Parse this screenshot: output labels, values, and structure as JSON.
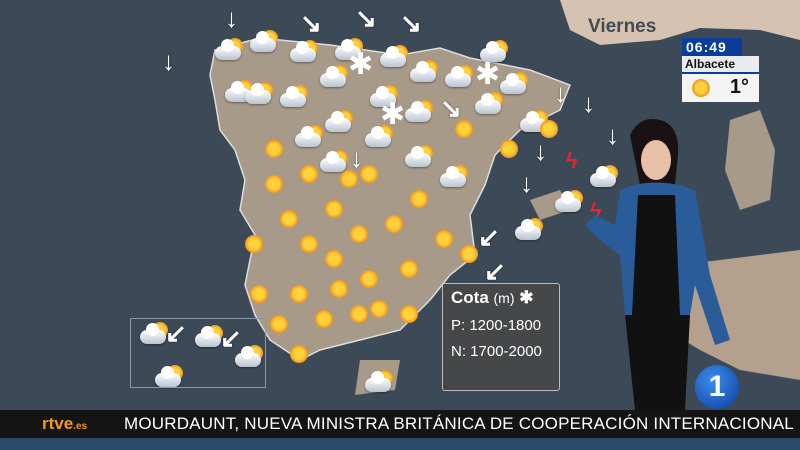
{
  "map": {
    "day": "Viernes",
    "sea_color": "#3c4a58",
    "land_color": "#a89a88"
  },
  "clock": {
    "time": "06:49",
    "city": "Albacete",
    "temp": "1°",
    "icon": "sun-icon"
  },
  "cota": {
    "title": "Cota",
    "unit": "(m)",
    "icon": "snowflake-icon",
    "lines": [
      "P: 1200-1800",
      "N: 1700-2000"
    ]
  },
  "channel": {
    "logo_main": "rtve",
    "logo_suffix": ".es",
    "number": "1"
  },
  "ticker": {
    "headline": "MOURDAUNT, NUEVA MINISTRA BRITÁNICA DE COOPERACIÓN INTERNACIONAL"
  }
}
